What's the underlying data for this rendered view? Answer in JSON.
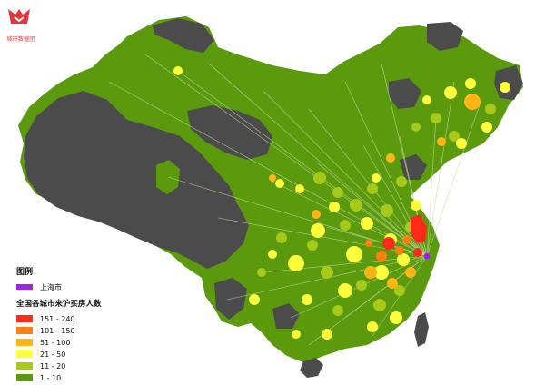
{
  "logo": {
    "text": "城市数据团",
    "brand_color": "#e8343c"
  },
  "legend": {
    "title": "图例",
    "destination": {
      "label": "上海市",
      "color": "#a020f0"
    },
    "subtitle": "全国各城市来沪买房人数",
    "classes": [
      {
        "label": "151 - 240",
        "color": "#ff2a1a"
      },
      {
        "label": "101 - 150",
        "color": "#ff7f12"
      },
      {
        "label": "51 - 100",
        "color": "#ffb515"
      },
      {
        "label": "21 - 50",
        "color": "#ffff3c"
      },
      {
        "label": "11 - 20",
        "color": "#a6c91a"
      },
      {
        "label": "1 - 10",
        "color": "#5a9a0c"
      }
    ]
  },
  "map_colors": {
    "no_data": "#4b4b4b",
    "flow_line": "#c7d9a4",
    "background": "#ffffff"
  }
}
